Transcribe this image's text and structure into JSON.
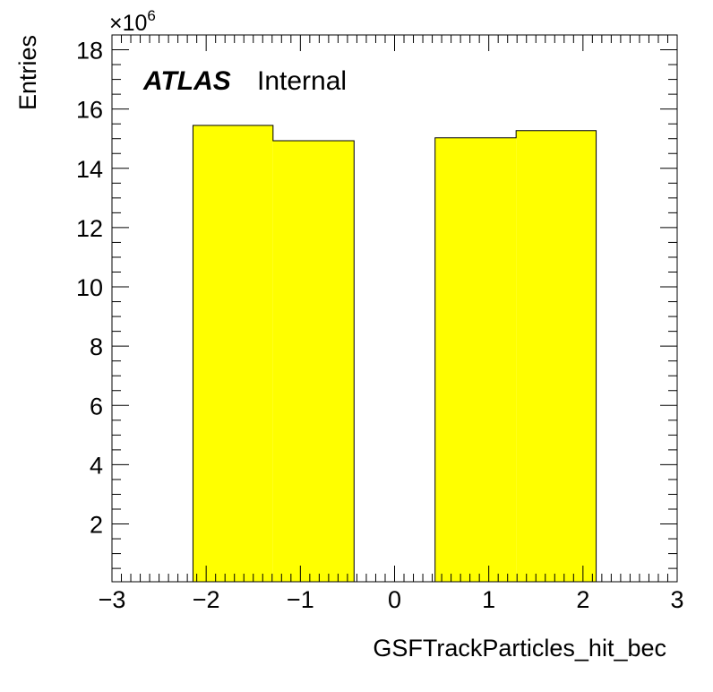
{
  "chart_data": {
    "type": "bar",
    "title": "",
    "xlabel": "GSFTrackParticles_hit_bec",
    "ylabel": "Entries",
    "y_multiplier_label": "×10",
    "y_multiplier_exponent": "6",
    "xlim": [
      -3,
      3
    ],
    "ylim": [
      0.05,
      18.5
    ],
    "x_ticks": [
      -3,
      -2,
      -1,
      0,
      1,
      2,
      3
    ],
    "x_tick_labels": [
      "−3",
      "−2",
      "−1",
      "0",
      "1",
      "2",
      "3"
    ],
    "y_ticks": [
      2,
      4,
      6,
      8,
      10,
      12,
      14,
      16,
      18
    ],
    "y_tick_labels": [
      "2",
      "4",
      "6",
      "8",
      "10",
      "12",
      "14",
      "16",
      "18"
    ],
    "grid": false,
    "fill_color": "#ffff00",
    "line_color": "#000000",
    "bins": [
      {
        "x_low": -2.14,
        "x_high": -1.29,
        "value": 15.45
      },
      {
        "x_low": -1.29,
        "x_high": -0.43,
        "value": 14.93
      },
      {
        "x_low": -0.43,
        "x_high": 0.43,
        "value": 0
      },
      {
        "x_low": 0.43,
        "x_high": 1.29,
        "value": 15.03
      },
      {
        "x_low": 1.29,
        "x_high": 2.14,
        "value": 15.27
      }
    ]
  },
  "annotation": {
    "experiment": "ATLAS",
    "status": "Internal"
  }
}
